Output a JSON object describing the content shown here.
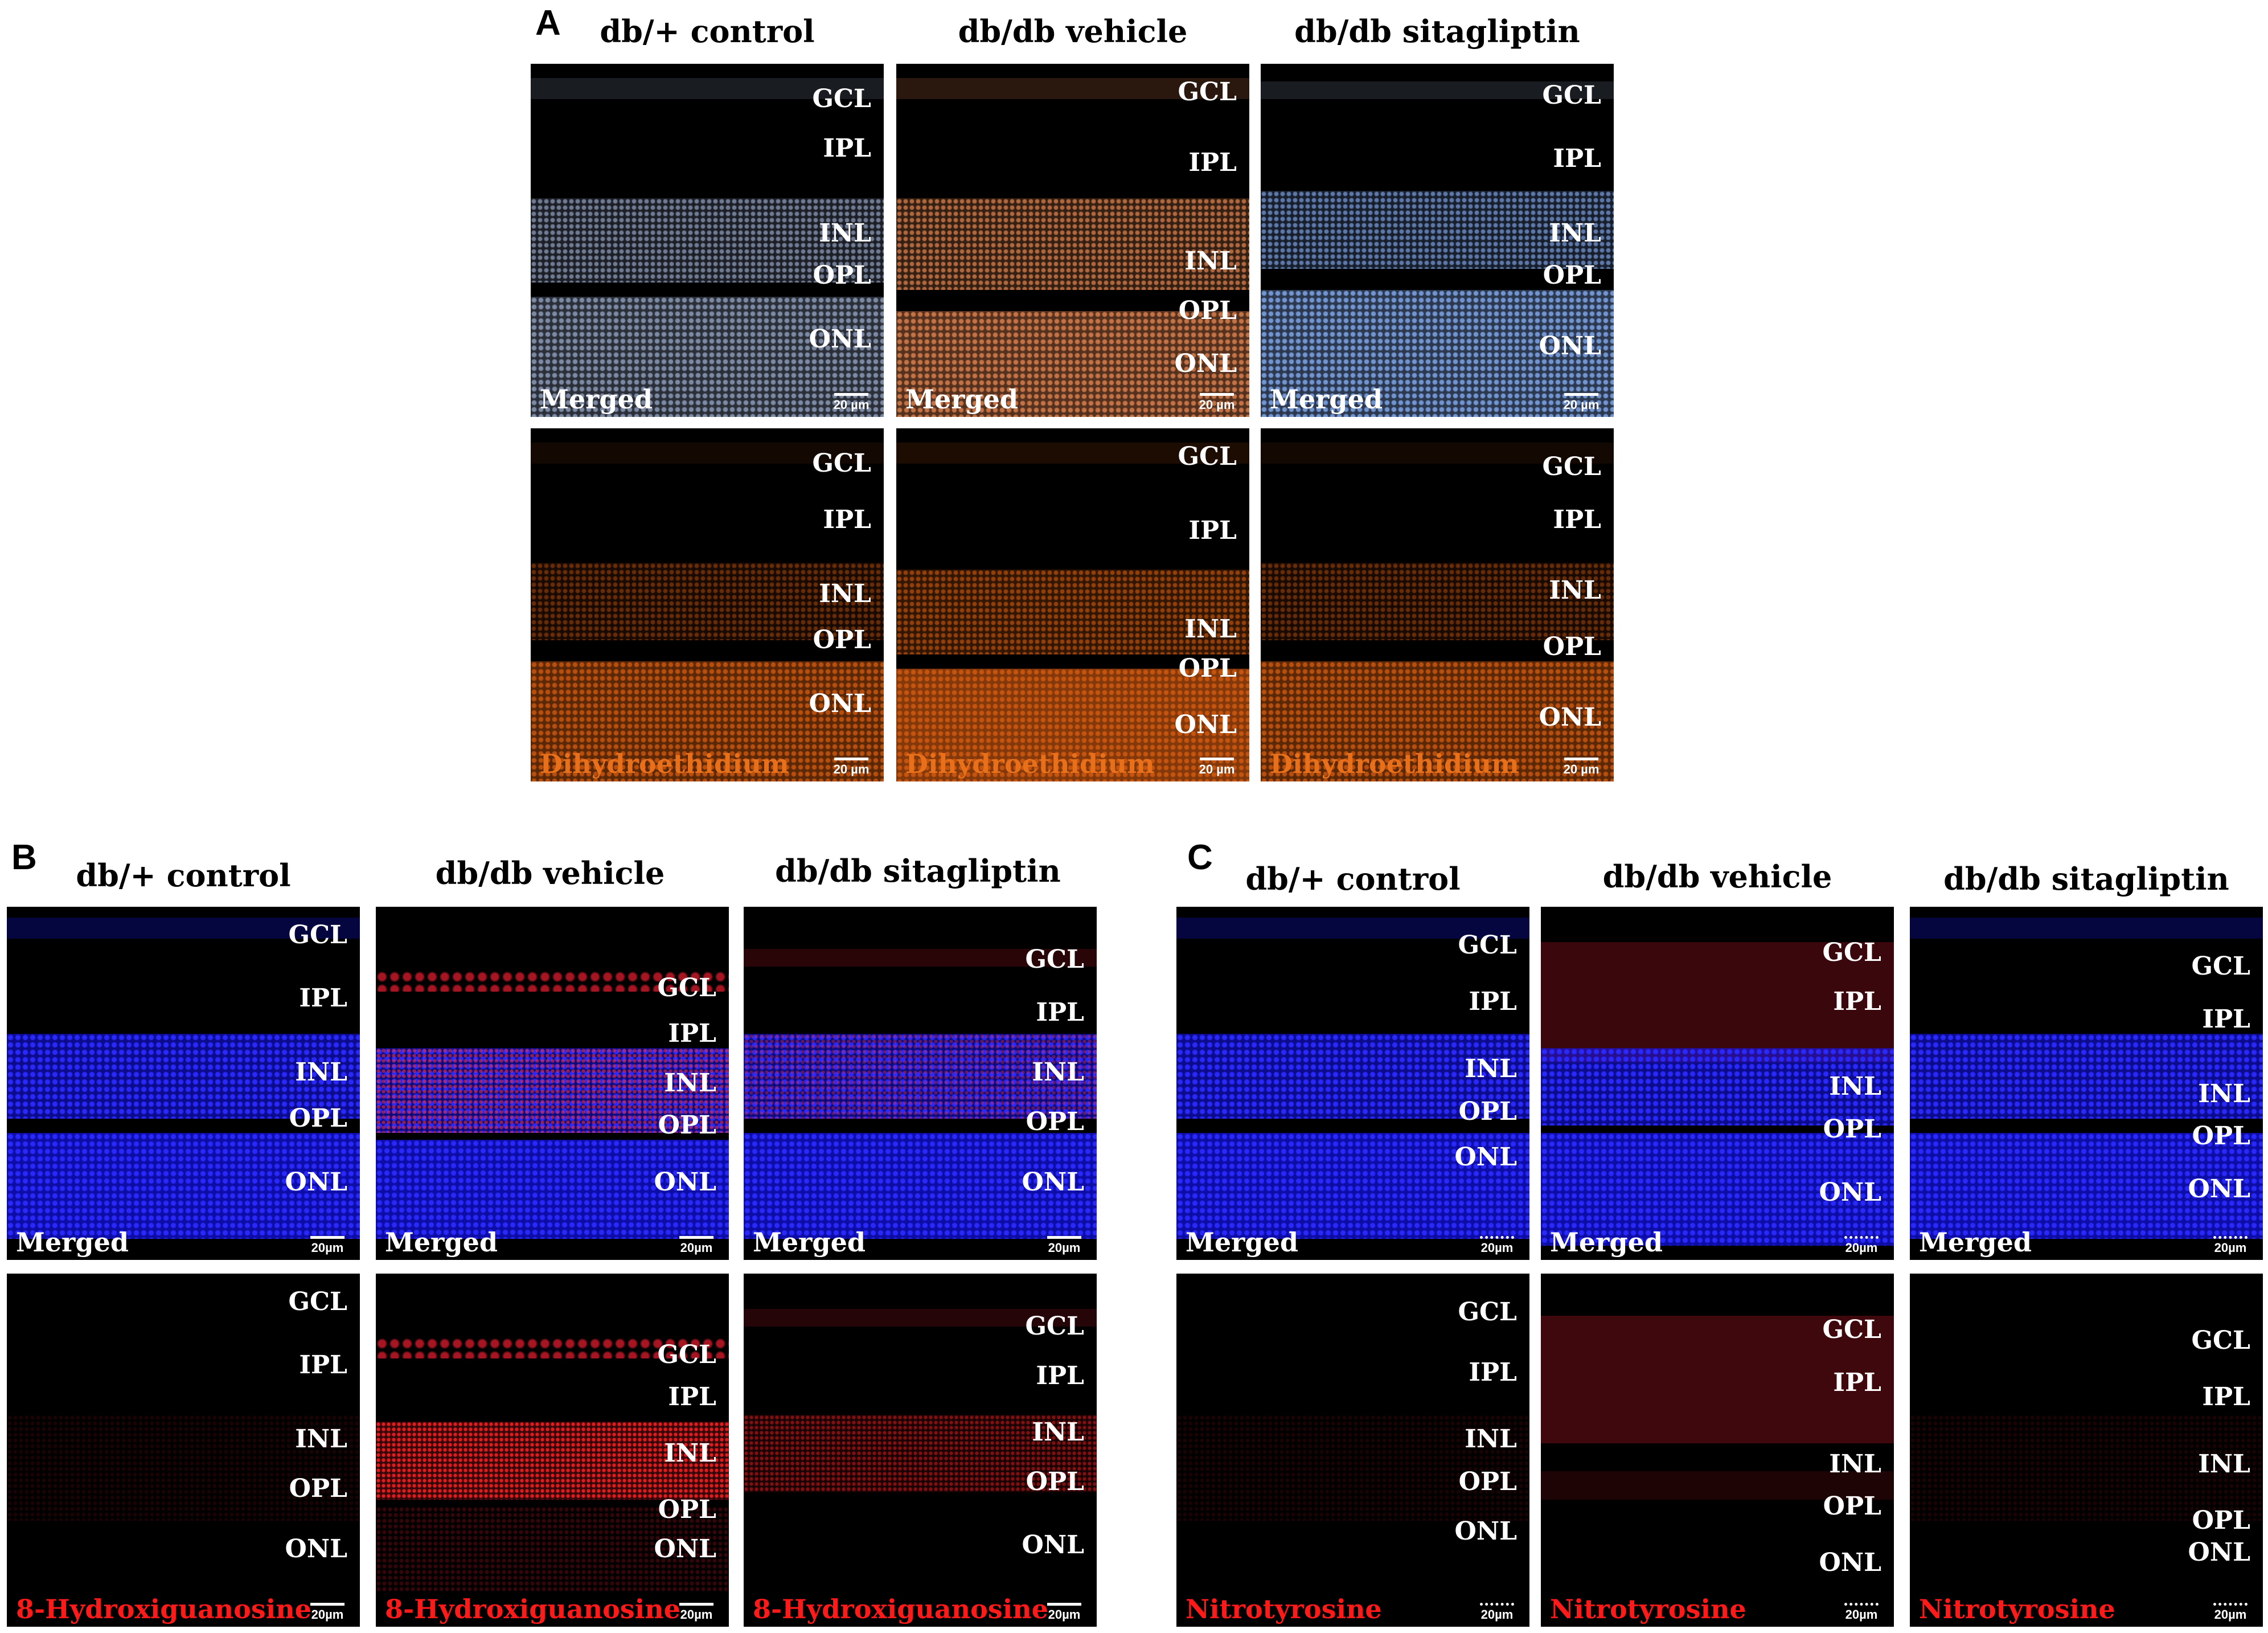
{
  "sections": {
    "A": {
      "letter": "A",
      "headers": [
        "db/+ control",
        "db/db vehicle",
        "db/db sitagliptin"
      ],
      "row_labels": [
        "Merged",
        "Dihydroethidium"
      ],
      "scale": "20 µm"
    },
    "B": {
      "letter": "B",
      "headers": [
        "db/+ control",
        "db/db vehicle",
        "db/db sitagliptin"
      ],
      "row_labels": [
        "Merged",
        "8-Hydroxiguanosine"
      ],
      "scale": "20µm"
    },
    "C": {
      "letter": "C",
      "headers": [
        "db/+ control",
        "db/db vehicle",
        "db/db sitagliptin"
      ],
      "row_labels": [
        "Merged",
        "Nitrotyrosine"
      ],
      "scale": "20µm"
    }
  },
  "layers": [
    "GCL",
    "IPL",
    "INL",
    "OPL",
    "ONL"
  ],
  "colors": {
    "dhe_label": "#e8701a",
    "marker_label": "#ff1a1a",
    "merged_label": "#ffffff",
    "dapi_blue": "#1414ff",
    "dhe_orange": "#c8560f",
    "merged_grey_blue": "#8c9ab8",
    "merged_orange": "#d07a4a",
    "oxidative_red": "#d01a2a"
  }
}
